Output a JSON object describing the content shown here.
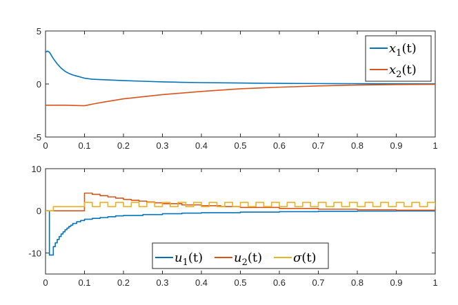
{
  "chart_data": [
    {
      "type": "line",
      "xlim": [
        0,
        1
      ],
      "ylim": [
        -5,
        5
      ],
      "x_ticks": [
        "0",
        "0.1",
        "0.2",
        "0.3",
        "0.4",
        "0.5",
        "0.6",
        "0.7",
        "0.8",
        "0.9",
        "1"
      ],
      "y_ticks": [
        "-5",
        "0",
        "5"
      ],
      "legend_position": "top-right",
      "series": [
        {
          "name": "x1(t)",
          "legend": {
            "var": "x",
            "sub": "1",
            "arg": "(t)"
          },
          "color": "#0072BD",
          "x": [
            0,
            0.005,
            0.01,
            0.02,
            0.03,
            0.04,
            0.05,
            0.06,
            0.07,
            0.08,
            0.09,
            0.1,
            0.11,
            0.12,
            0.15,
            0.2,
            0.25,
            0.3,
            0.35,
            0.4,
            0.5,
            0.6,
            0.7,
            0.8,
            0.9,
            1.0
          ],
          "y": [
            3.0,
            3.1,
            3.0,
            2.4,
            1.9,
            1.5,
            1.2,
            1.0,
            0.85,
            0.75,
            0.65,
            0.55,
            0.5,
            0.45,
            0.4,
            0.32,
            0.26,
            0.2,
            0.16,
            0.13,
            0.09,
            0.06,
            0.04,
            0.03,
            0.02,
            0.01
          ]
        },
        {
          "name": "x2(t)",
          "legend": {
            "var": "x",
            "sub": "2",
            "arg": "(t)"
          },
          "color": "#D95319",
          "x": [
            0,
            0.05,
            0.1,
            0.12,
            0.15,
            0.2,
            0.3,
            0.4,
            0.5,
            0.6,
            0.7,
            0.8,
            0.9,
            1.0
          ],
          "y": [
            -2.0,
            -2.0,
            -2.05,
            -1.9,
            -1.7,
            -1.4,
            -1.0,
            -0.7,
            -0.45,
            -0.3,
            -0.18,
            -0.1,
            -0.05,
            -0.03
          ]
        }
      ]
    },
    {
      "type": "line",
      "xlim": [
        0,
        1
      ],
      "ylim": [
        -15,
        10
      ],
      "x_ticks": [
        "0",
        "0.1",
        "0.2",
        "0.3",
        "0.4",
        "0.5",
        "0.6",
        "0.7",
        "0.8",
        "0.9",
        "1"
      ],
      "y_ticks": [
        "-10",
        "0",
        "10"
      ],
      "legend_position": "bottom-center",
      "series": [
        {
          "name": "u1(t)",
          "legend": {
            "var": "u",
            "sub": "1",
            "arg": "(t)"
          },
          "color": "#0072BD",
          "step": true,
          "x": [
            0,
            0.005,
            0.01,
            0.02,
            0.025,
            0.03,
            0.035,
            0.04,
            0.045,
            0.05,
            0.055,
            0.06,
            0.065,
            0.07,
            0.08,
            0.09,
            0.1,
            0.12,
            0.14,
            0.16,
            0.18,
            0.2,
            0.25,
            0.3,
            0.35,
            0.4,
            0.5,
            0.6,
            0.7,
            0.8,
            0.9,
            1.0
          ],
          "y": [
            0,
            0,
            -10.5,
            -8.5,
            -7.6,
            -6.8,
            -6.1,
            -5.5,
            -5.0,
            -4.5,
            -4.1,
            -3.7,
            -3.4,
            -3.0,
            -2.6,
            -2.3,
            -2.0,
            -1.8,
            -1.6,
            -1.4,
            -1.2,
            -1.1,
            -0.9,
            -0.7,
            -0.55,
            -0.45,
            -0.3,
            -0.2,
            -0.12,
            -0.07,
            -0.04,
            -0.02
          ]
        },
        {
          "name": "u2(t)",
          "legend": {
            "var": "u",
            "sub": "2",
            "arg": "(t)"
          },
          "color": "#D95319",
          "step": true,
          "x": [
            0,
            0.1,
            0.12,
            0.14,
            0.16,
            0.18,
            0.2,
            0.22,
            0.24,
            0.26,
            0.28,
            0.3,
            0.35,
            0.4,
            0.45,
            0.5,
            0.6,
            0.7,
            0.8,
            0.9,
            1.0
          ],
          "y": [
            0,
            4.2,
            3.9,
            3.6,
            3.3,
            3.0,
            2.7,
            2.5,
            2.3,
            2.1,
            1.9,
            1.7,
            1.4,
            1.2,
            1.0,
            0.8,
            0.55,
            0.38,
            0.25,
            0.15,
            0.1
          ]
        },
        {
          "name": "σ(t)",
          "legend": {
            "var": "σ",
            "sub": "",
            "arg": "(t)"
          },
          "color": "#EDB120",
          "switching": true,
          "start": 0.02,
          "pre_value": 0,
          "base_value": 1,
          "high_value": 2,
          "toggle_from": 0.1,
          "toggle_period": 0.02
        }
      ]
    }
  ]
}
